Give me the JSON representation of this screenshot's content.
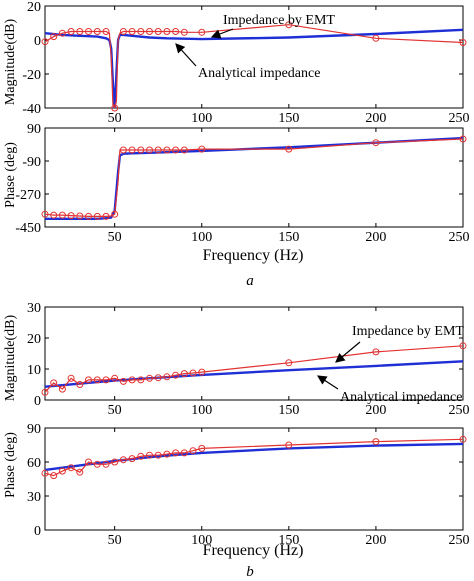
{
  "colors": {
    "analytical": "#1f2fd6",
    "emt": "#e23232",
    "axis": "#000000"
  },
  "panel_labels": [
    "a",
    "b"
  ],
  "chart_data": [
    {
      "type": "line",
      "panel": "a",
      "ylabel": "Magnitude(dB)",
      "xlabel": "",
      "xlim": [
        10,
        250
      ],
      "ylim": [
        -40,
        20
      ],
      "xticks": [
        "50",
        "100",
        "150",
        "200",
        "250"
      ],
      "yticks": [
        "20",
        "0",
        "-20",
        "-40"
      ],
      "series": [
        {
          "name": "Analytical impedance",
          "color": "#1f2fd6",
          "x": [
            10,
            20,
            30,
            40,
            45,
            47,
            48,
            49,
            50,
            51,
            52,
            53,
            55,
            60,
            70,
            80,
            100,
            150,
            200,
            250
          ],
          "y": [
            4,
            3,
            2.5,
            2,
            1,
            0,
            -5,
            -25,
            -42,
            -20,
            0,
            3,
            3,
            2.5,
            1.5,
            1,
            0.5,
            1.5,
            3.5,
            6
          ]
        },
        {
          "name": "Impedance by EMT",
          "color": "#e23232",
          "marker": "circle",
          "x": [
            10,
            15,
            20,
            25,
            30,
            35,
            40,
            45,
            47,
            48,
            49,
            50,
            51,
            52,
            53,
            55,
            60,
            65,
            70,
            75,
            80,
            85,
            90,
            100,
            150,
            200,
            250
          ],
          "y": [
            -1,
            2,
            4,
            5,
            5,
            5,
            5,
            5,
            4,
            -10,
            -38,
            -40,
            -36,
            0,
            4,
            5,
            5,
            5,
            5,
            5,
            5,
            5,
            4.5,
            4.5,
            9,
            1,
            -1.5
          ],
          "markers_x": [
            10,
            15,
            20,
            25,
            30,
            35,
            40,
            45,
            50,
            55,
            60,
            65,
            70,
            75,
            80,
            85,
            90,
            100,
            150,
            200,
            250
          ],
          "markers_y": [
            -1,
            2,
            4,
            5,
            5,
            5,
            5,
            5,
            -40,
            5,
            5,
            5,
            5,
            5,
            5,
            5,
            4.5,
            4.5,
            9,
            1,
            -1.5
          ]
        }
      ],
      "annotations": [
        "Impedance by EMT",
        "Analytical impedance"
      ]
    },
    {
      "type": "line",
      "panel": "a",
      "ylabel": "Phase (deg)",
      "xlabel": "Frequency (Hz)",
      "xlim": [
        10,
        250
      ],
      "ylim": [
        -450,
        90
      ],
      "xticks": [
        "50",
        "100",
        "150",
        "200",
        "250"
      ],
      "yticks": [
        "90",
        "-90",
        "-270",
        "-450"
      ],
      "series": [
        {
          "name": "Analytical impedance",
          "color": "#1f2fd6",
          "x": [
            10,
            20,
            30,
            40,
            45,
            48,
            50,
            52,
            53,
            55,
            60,
            70,
            80,
            100,
            150,
            200,
            250
          ],
          "y": [
            -405,
            -405,
            -405,
            -405,
            -402,
            -398,
            -360,
            -150,
            -60,
            -50,
            -48,
            -45,
            -42,
            -35,
            -15,
            10,
            35
          ]
        },
        {
          "name": "Impedance by EMT",
          "color": "#e23232",
          "marker": "circle",
          "x": [
            10,
            15,
            20,
            25,
            30,
            35,
            40,
            45,
            48,
            50,
            52,
            53,
            55,
            60,
            65,
            70,
            75,
            80,
            85,
            90,
            100,
            150,
            200,
            250
          ],
          "y": [
            -380,
            -385,
            -385,
            -388,
            -390,
            -392,
            -392,
            -392,
            -390,
            -380,
            -200,
            -30,
            -30,
            -30,
            -30,
            -30,
            -30,
            -30,
            -30,
            -30,
            -25,
            -25,
            10,
            30
          ],
          "markers_x": [
            10,
            15,
            20,
            25,
            30,
            35,
            40,
            45,
            50,
            55,
            60,
            65,
            70,
            75,
            80,
            85,
            90,
            100,
            150,
            200,
            250
          ],
          "markers_y": [
            -380,
            -385,
            -385,
            -388,
            -390,
            -392,
            -392,
            -392,
            -380,
            -30,
            -30,
            -30,
            -30,
            -30,
            -30,
            -30,
            -30,
            -25,
            -25,
            10,
            30
          ]
        }
      ]
    },
    {
      "type": "line",
      "panel": "b",
      "ylabel": "Magnitude(dB)",
      "xlabel": "",
      "xlim": [
        10,
        250
      ],
      "ylim": [
        0,
        30
      ],
      "xticks": [
        "50",
        "100",
        "150",
        "200",
        "250"
      ],
      "yticks": [
        "30",
        "20",
        "10",
        "0"
      ],
      "series": [
        {
          "name": "Analytical impedance",
          "color": "#1f2fd6",
          "x": [
            10,
            50,
            100,
            150,
            200,
            250
          ],
          "y": [
            4.3,
            6.3,
            8.1,
            9.6,
            11.0,
            12.5
          ]
        },
        {
          "name": "Impedance by EMT",
          "color": "#e23232",
          "marker": "circle",
          "x": [
            10,
            15,
            20,
            25,
            30,
            35,
            40,
            45,
            50,
            55,
            60,
            65,
            70,
            75,
            80,
            85,
            90,
            95,
            100,
            150,
            200,
            250
          ],
          "y": [
            2.5,
            5.5,
            3.5,
            7,
            5,
            6.5,
            6.5,
            6.5,
            7,
            6,
            6.5,
            6.5,
            7,
            7.2,
            7.5,
            8,
            8.5,
            8.7,
            9,
            12,
            15.5,
            17.5
          ],
          "markers_x": [
            10,
            15,
            20,
            25,
            30,
            35,
            40,
            45,
            50,
            55,
            60,
            65,
            70,
            75,
            80,
            85,
            90,
            95,
            100,
            150,
            200,
            250
          ],
          "markers_y": [
            2.5,
            5.5,
            3.5,
            7,
            5,
            6.5,
            6.5,
            6.5,
            7,
            6,
            6.5,
            6.5,
            7,
            7.2,
            7.5,
            8,
            8.5,
            8.7,
            9,
            12,
            15.5,
            17.5
          ]
        }
      ],
      "annotations": [
        "Impedance by EMT",
        "Analytical impedance"
      ]
    },
    {
      "type": "line",
      "panel": "b",
      "ylabel": "Phase (deg)",
      "xlabel": "Frequency (Hz)",
      "xlim": [
        10,
        250
      ],
      "ylim": [
        0,
        90
      ],
      "xticks": [
        "50",
        "100",
        "150",
        "200",
        "250"
      ],
      "yticks": [
        "90",
        "60",
        "30",
        "0"
      ],
      "series": [
        {
          "name": "Analytical impedance",
          "color": "#1f2fd6",
          "x": [
            10,
            30,
            50,
            75,
            100,
            150,
            200,
            250
          ],
          "y": [
            53,
            57,
            61,
            65,
            68,
            72,
            74.5,
            76
          ]
        },
        {
          "name": "Impedance by EMT",
          "color": "#e23232",
          "marker": "circle",
          "x": [
            10,
            15,
            20,
            25,
            30,
            35,
            40,
            45,
            50,
            55,
            60,
            65,
            70,
            75,
            80,
            85,
            90,
            95,
            100,
            150,
            200,
            250
          ],
          "y": [
            50,
            48,
            52,
            55,
            51,
            60,
            58,
            58,
            60,
            62,
            63,
            65,
            66,
            66,
            67,
            68,
            68,
            70,
            72,
            75,
            78,
            80
          ],
          "markers_x": [
            10,
            15,
            20,
            25,
            30,
            35,
            40,
            45,
            50,
            55,
            60,
            65,
            70,
            75,
            80,
            85,
            90,
            95,
            100,
            150,
            200,
            250
          ],
          "markers_y": [
            50,
            48,
            52,
            55,
            51,
            60,
            58,
            58,
            60,
            62,
            63,
            65,
            66,
            66,
            67,
            68,
            68,
            70,
            72,
            75,
            78,
            80
          ]
        }
      ]
    }
  ]
}
